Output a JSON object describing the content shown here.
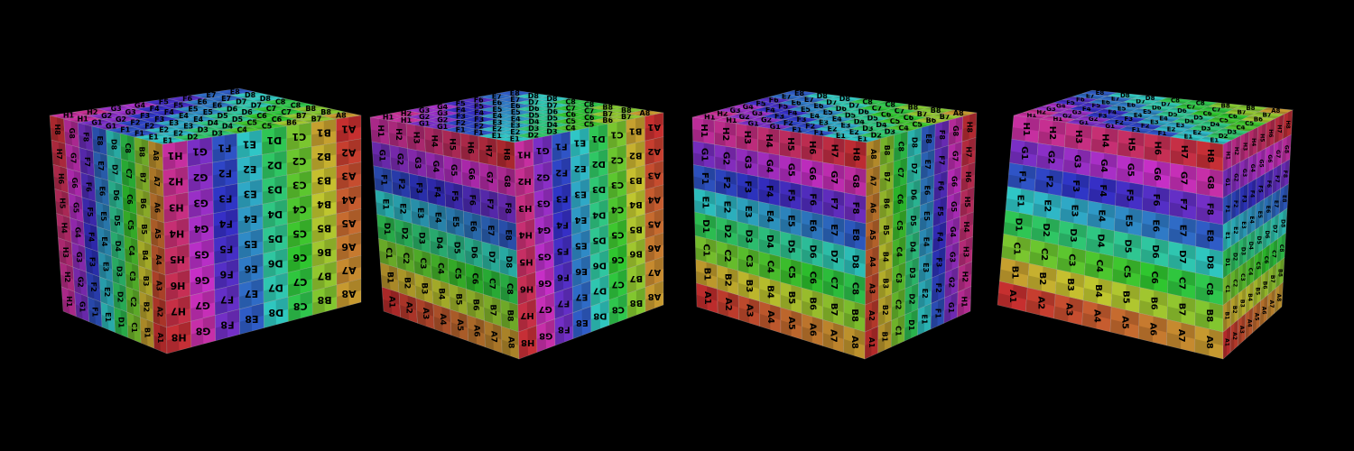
{
  "scene": {
    "background": "#000000",
    "cube_count": 4,
    "texture": {
      "rows": [
        "A",
        "B",
        "C",
        "D",
        "E",
        "F",
        "G",
        "H"
      ],
      "cols": [
        "1",
        "2",
        "3",
        "4",
        "5",
        "6",
        "7",
        "8"
      ],
      "checker_overlay": true,
      "row_hue_degrees": [
        0,
        45,
        90,
        135,
        180,
        225,
        270,
        315
      ],
      "colors": {
        "A": "#d42020",
        "B": "#d8a020",
        "C": "#8cc028",
        "D": "#30b830",
        "E": "#20b8b0",
        "F": "#2050d0",
        "G": "#7020c8",
        "H": "#c020a0"
      }
    }
  }
}
